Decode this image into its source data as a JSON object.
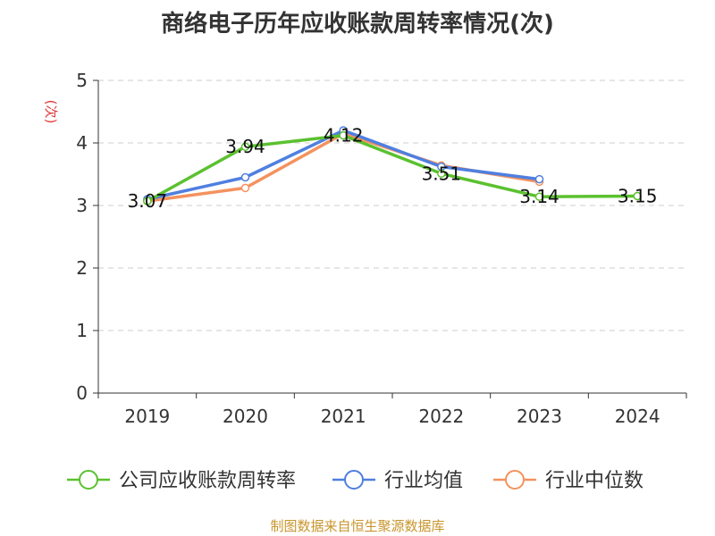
{
  "chart_data": {
    "type": "line",
    "title": "商络电子历年应收账款周转率情况(次)",
    "ylabel": "(次)",
    "xlabel": "",
    "categories": [
      "2019",
      "2020",
      "2021",
      "2022",
      "2023",
      "2024"
    ],
    "ylim": [
      0,
      5
    ],
    "yticks": [
      0,
      1,
      2,
      3,
      4,
      5
    ],
    "grid": true,
    "legend_position": "bottom",
    "series": [
      {
        "name": "公司应收账款周转率",
        "color": "#5bc12f",
        "values": [
          3.07,
          3.94,
          4.12,
          3.51,
          3.14,
          3.15
        ],
        "labels": [
          "3.07",
          "3.94",
          "4.12",
          "3.51",
          "3.14",
          "3.15"
        ]
      },
      {
        "name": "行业均值",
        "color": "#4f7fe0",
        "values": [
          3.1,
          3.45,
          4.2,
          3.62,
          3.42,
          null
        ]
      },
      {
        "name": "行业中位数",
        "color": "#f4925e",
        "values": [
          3.07,
          3.28,
          4.15,
          3.64,
          3.38,
          null
        ]
      }
    ]
  },
  "footer": {
    "source": "制图数据来自恒生聚源数据库",
    "color": "#c8952c"
  },
  "colors": {
    "axis": "#333333",
    "grid": "#cccccc",
    "unit_label": "#e03a3a"
  }
}
